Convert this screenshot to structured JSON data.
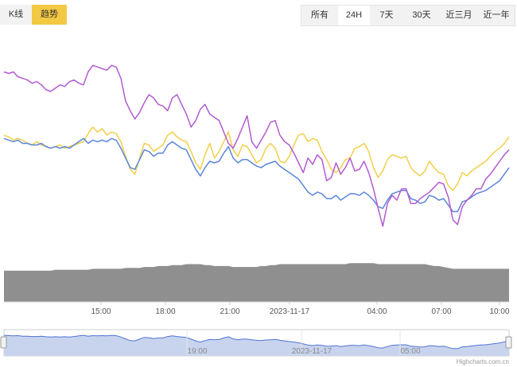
{
  "view_toggle": {
    "kline_label": "K线",
    "trend_label": "趋势",
    "active": "trend"
  },
  "range_selector": {
    "buttons": [
      "所有",
      "24H",
      "7天",
      "30天",
      "近三月",
      "近一年"
    ],
    "active": "24H"
  },
  "colors": {
    "purple": "#b25bd1",
    "yellow": "#f2cf4a",
    "blue": "#5b86d9",
    "volume": "#8f8f8f",
    "navigator_fill": "#c8d4ee",
    "navigator_line": "#4f74d0",
    "toggle_active": "#f3c843"
  },
  "credit": "Highcharts.com.cn",
  "chart_data": {
    "type": "line",
    "title": "",
    "x_ticks": [
      "15:00",
      "18:00",
      "21:00",
      "2023-11-17",
      "04:00",
      "07:00",
      "10:00"
    ],
    "navigator_ticks": [
      "19:00",
      "2023-11-17",
      "05:00"
    ],
    "grid": false,
    "legend": "none",
    "series": [
      {
        "color": "purple",
        "values": [
          100,
          99,
          100,
          97,
          96,
          95,
          93,
          94,
          92,
          89,
          88,
          90,
          92,
          91,
          94,
          95,
          93,
          92,
          100,
          104,
          103,
          102,
          101,
          104,
          103,
          96,
          82,
          76,
          71,
          75,
          81,
          86,
          84,
          80,
          79,
          76,
          84,
          86,
          80,
          74,
          66,
          70,
          77,
          80,
          74,
          72,
          70,
          63,
          56,
          53,
          59,
          66,
          73,
          57,
          53,
          58,
          63,
          69,
          70,
          61,
          57,
          55,
          50,
          44,
          38,
          47,
          43,
          49,
          46,
          33,
          35,
          44,
          37,
          41,
          47,
          39,
          40,
          45,
          38,
          28,
          16,
          5,
          19,
          24,
          21,
          28,
          28,
          19,
          19,
          22,
          24,
          26,
          29,
          32,
          31,
          23,
          9,
          6,
          17,
          21,
          24,
          28,
          28,
          34,
          37,
          41,
          45,
          49,
          52
        ]
      },
      {
        "color": "yellow",
        "values": [
          61,
          60,
          58,
          59,
          58,
          56,
          55,
          57,
          55,
          54,
          53,
          54,
          55,
          53,
          54,
          55,
          56,
          57,
          62,
          66,
          63,
          65,
          61,
          63,
          62,
          57,
          48,
          40,
          37,
          47,
          56,
          55,
          51,
          53,
          55,
          61,
          63,
          60,
          58,
          57,
          51,
          44,
          40,
          49,
          56,
          47,
          51,
          57,
          63,
          52,
          48,
          55,
          54,
          49,
          44,
          46,
          53,
          56,
          53,
          45,
          44,
          48,
          55,
          61,
          62,
          57,
          59,
          58,
          51,
          46,
          40,
          38,
          41,
          46,
          47,
          53,
          54,
          56,
          51,
          41,
          35,
          39,
          46,
          49,
          48,
          47,
          48,
          41,
          38,
          36,
          39,
          45,
          41,
          38,
          37,
          30,
          27,
          31,
          38,
          36,
          39,
          41,
          43,
          45,
          48,
          51,
          53,
          56,
          60
        ]
      },
      {
        "color": "blue",
        "values": [
          59,
          58,
          57,
          58,
          56,
          56,
          55,
          55,
          56,
          54,
          53,
          54,
          53,
          54,
          53,
          55,
          57,
          59,
          56,
          58,
          57,
          58,
          57,
          59,
          58,
          53,
          47,
          41,
          40,
          46,
          52,
          51,
          48,
          50,
          50,
          55,
          57,
          55,
          53,
          52,
          46,
          40,
          36,
          41,
          45,
          44,
          45,
          50,
          54,
          47,
          44,
          46,
          46,
          44,
          42,
          41,
          43,
          44,
          45,
          42,
          40,
          38,
          36,
          34,
          30,
          26,
          24,
          26,
          25,
          22,
          22,
          24,
          21,
          23,
          25,
          25,
          24,
          26,
          24,
          21,
          17,
          16,
          21,
          25,
          26,
          27,
          27,
          22,
          21,
          19,
          20,
          24,
          23,
          21,
          22,
          18,
          14,
          14,
          20,
          21,
          23,
          25,
          26,
          27,
          29,
          31,
          33,
          37,
          41
        ]
      }
    ],
    "volume": [
      33,
      33,
      33,
      33,
      33,
      33,
      33,
      33,
      33,
      33,
      33,
      34,
      34,
      34,
      34,
      34,
      34,
      34,
      34,
      35,
      35,
      35,
      35,
      35,
      35,
      35,
      36,
      36,
      36,
      36,
      37,
      37,
      37,
      38,
      38,
      38,
      39,
      39,
      39,
      40,
      40,
      40,
      40,
      39,
      39,
      38,
      38,
      38,
      38,
      37,
      37,
      37,
      37,
      37,
      37,
      38,
      38,
      39,
      39,
      40,
      40,
      40,
      40,
      40,
      40,
      40,
      40,
      40,
      40,
      40,
      40,
      40,
      40,
      40,
      41,
      41,
      41,
      41,
      41,
      41,
      40,
      40,
      40,
      40,
      40,
      40,
      40,
      40,
      40,
      40,
      40,
      39,
      38,
      38,
      37,
      36,
      35,
      35,
      35,
      35,
      35,
      35,
      35,
      35,
      35,
      35,
      35,
      35,
      35
    ]
  }
}
